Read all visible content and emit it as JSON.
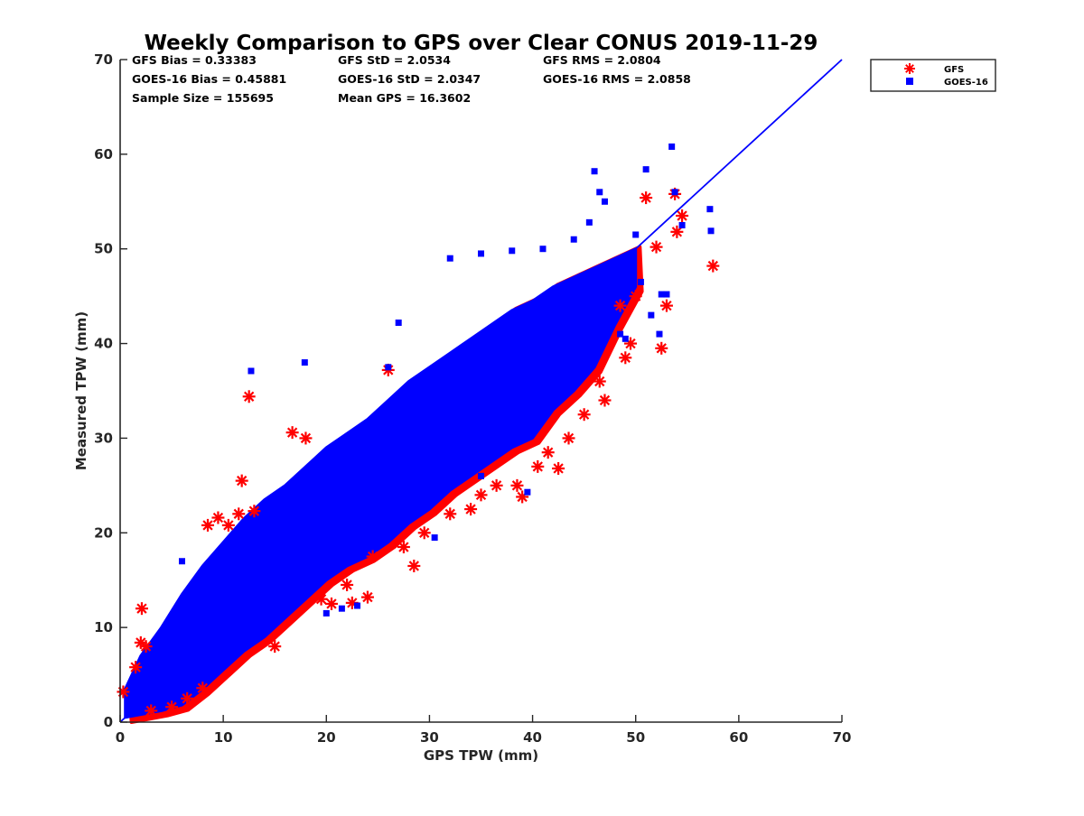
{
  "chart_data": {
    "type": "scatter",
    "title": "Weekly Comparison to GPS over Clear CONUS 2019-11-29",
    "xlabel": "GPS TPW (mm)",
    "ylabel": "Measured TPW (mm)",
    "xlim": [
      0,
      70
    ],
    "ylim": [
      0,
      70
    ],
    "xticks": [
      "0",
      "10",
      "20",
      "30",
      "40",
      "50",
      "60",
      "70"
    ],
    "yticks": [
      "0",
      "10",
      "20",
      "30",
      "40",
      "50",
      "60",
      "70"
    ],
    "grid": false,
    "legend_position": "outside-top-right",
    "stats": [
      [
        "GFS Bias = 0.33383",
        "GFS StD = 2.0534",
        "GFS RMS = 2.0804"
      ],
      [
        "GOES-16 Bias = 0.45881",
        "GOES-16 StD = 2.0347",
        "GOES-16 RMS = 2.0858"
      ],
      [
        "Sample Size = 155695",
        "Mean GPS = 16.3602"
      ]
    ],
    "series": [
      {
        "name": "GFS",
        "marker": "asterisk",
        "color": "#ff0000",
        "points": [
          [
            0.3,
            3.2
          ],
          [
            1.5,
            5.8
          ],
          [
            2.0,
            8.4
          ],
          [
            2.1,
            12.0
          ],
          [
            2.5,
            8.0
          ],
          [
            3.0,
            1.2
          ],
          [
            5.0,
            1.6
          ],
          [
            6.5,
            2.5
          ],
          [
            8.0,
            3.6
          ],
          [
            8.5,
            20.8
          ],
          [
            9.5,
            21.6
          ],
          [
            10.5,
            20.8
          ],
          [
            11.5,
            22.0
          ],
          [
            11.8,
            25.5
          ],
          [
            12.5,
            34.4
          ],
          [
            13.0,
            22.3
          ],
          [
            15.0,
            8.0
          ],
          [
            16.7,
            30.6
          ],
          [
            18.0,
            30.0
          ],
          [
            19.5,
            13.0
          ],
          [
            20.5,
            12.5
          ],
          [
            22.0,
            14.5
          ],
          [
            22.5,
            12.6
          ],
          [
            24.0,
            13.2
          ],
          [
            24.5,
            17.5
          ],
          [
            26.0,
            37.2
          ],
          [
            27.5,
            18.5
          ],
          [
            28.5,
            16.5
          ],
          [
            29.5,
            20.0
          ],
          [
            32.0,
            22.0
          ],
          [
            34.0,
            22.5
          ],
          [
            35.0,
            24.0
          ],
          [
            36.5,
            25.0
          ],
          [
            38.5,
            25.0
          ],
          [
            39.0,
            23.8
          ],
          [
            40.5,
            27.0
          ],
          [
            41.5,
            28.5
          ],
          [
            42.5,
            26.8
          ],
          [
            43.5,
            30.0
          ],
          [
            45.0,
            32.5
          ],
          [
            46.5,
            36.0
          ],
          [
            47.0,
            34.0
          ],
          [
            48.5,
            44.0
          ],
          [
            49.0,
            38.5
          ],
          [
            49.5,
            40.0
          ],
          [
            50.0,
            45.0
          ],
          [
            51.0,
            55.4
          ],
          [
            52.0,
            50.2
          ],
          [
            52.5,
            39.5
          ],
          [
            53.0,
            44.0
          ],
          [
            53.8,
            55.8
          ],
          [
            54.0,
            51.8
          ],
          [
            54.5,
            53.5
          ],
          [
            57.5,
            48.2
          ]
        ]
      },
      {
        "name": "GOES-16",
        "marker": "square",
        "color": "#0000ff",
        "points": [
          [
            12.7,
            37.1
          ],
          [
            17.9,
            38.0
          ],
          [
            26.0,
            37.5
          ],
          [
            27.0,
            42.2
          ],
          [
            32.0,
            49.0
          ],
          [
            35.0,
            49.5
          ],
          [
            38.0,
            49.8
          ],
          [
            41.0,
            50.0
          ],
          [
            44.0,
            51.0
          ],
          [
            45.5,
            52.8
          ],
          [
            46.0,
            58.2
          ],
          [
            46.5,
            56.0
          ],
          [
            47.0,
            55.0
          ],
          [
            50.0,
            51.5
          ],
          [
            51.0,
            58.4
          ],
          [
            53.5,
            60.8
          ],
          [
            53.8,
            56.0
          ],
          [
            54.5,
            52.5
          ],
          [
            57.2,
            54.2
          ],
          [
            57.3,
            51.9
          ],
          [
            52.5,
            45.2
          ],
          [
            53.0,
            45.2
          ],
          [
            52.3,
            41.0
          ],
          [
            51.5,
            43.0
          ],
          [
            48.5,
            41.0
          ],
          [
            49.0,
            40.5
          ],
          [
            50.5,
            46.5
          ],
          [
            23.0,
            12.3
          ],
          [
            21.5,
            12.0
          ],
          [
            13.0,
            15.5
          ],
          [
            39.5,
            24.3
          ],
          [
            30.5,
            19.5
          ],
          [
            35.0,
            26.0
          ],
          [
            26.0,
            21.0
          ],
          [
            20.0,
            11.5
          ],
          [
            6.0,
            17.0
          ]
        ]
      }
    ],
    "density_band": {
      "x": [
        0.5,
        2,
        4,
        6,
        8,
        10,
        12,
        14,
        16,
        18,
        20,
        22,
        24,
        26,
        28,
        30,
        32,
        34,
        36,
        38,
        40,
        42,
        44,
        46,
        48,
        50
      ],
      "upper": [
        3.5,
        7,
        10,
        13.5,
        16.5,
        19,
        21.5,
        23.5,
        25,
        27,
        29,
        30.5,
        32,
        34,
        36,
        37.5,
        39,
        40.5,
        42,
        43.5,
        44.5,
        46,
        47,
        48,
        49,
        50
      ],
      "lower": [
        0.5,
        0.8,
        1.2,
        1.8,
        3.5,
        5.5,
        7.5,
        9,
        11,
        13,
        15,
        16.5,
        17.5,
        19,
        21,
        22.5,
        24.5,
        26,
        27.5,
        29,
        30,
        33,
        35,
        37.5,
        42,
        46
      ]
    },
    "reference_line": {
      "name": "1:1 line",
      "color": "#0000ff",
      "from": [
        0,
        0
      ],
      "to": [
        70,
        70
      ]
    }
  }
}
